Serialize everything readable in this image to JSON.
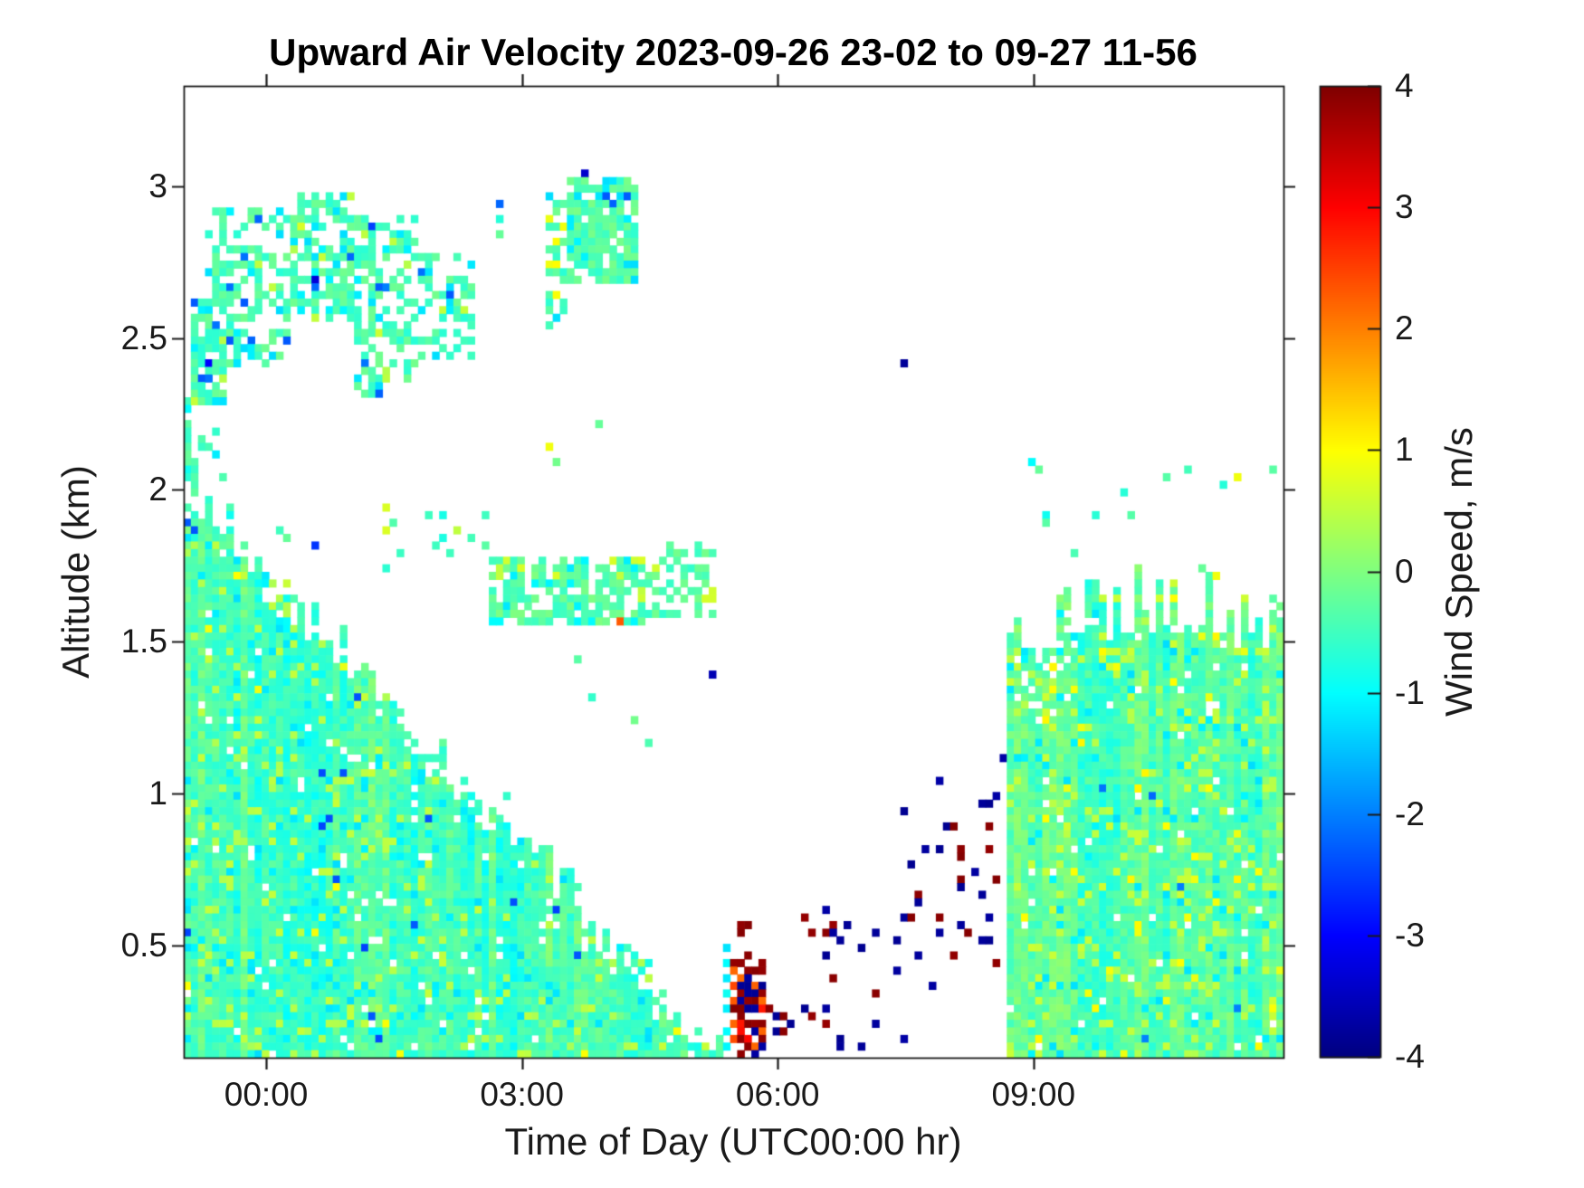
{
  "chart_data": {
    "type": "heatmap",
    "title": "Upward Air Velocity 2023-09-26 23-02 to 09-27 11-56",
    "xlabel": "Time of Day (UTC00:00 hr)",
    "ylabel": "Altitude (km)",
    "colorbar_label": "Wind Speed, m/s",
    "colormap": "jet",
    "value_range": [
      -4,
      4
    ],
    "colorbar_ticks": [
      "4",
      "3",
      "2",
      "1",
      "0",
      "-1",
      "-2",
      "-3",
      "-4"
    ],
    "x_axis": {
      "start_hour": 23.033,
      "end_hour": 35.933,
      "tick_hours": [
        24,
        27,
        30,
        33
      ],
      "tick_labels": [
        "00:00",
        "03:00",
        "06:00",
        "09:00"
      ]
    },
    "y_axis": {
      "min_km": 0.13,
      "max_km": 3.33,
      "ticks": [
        0.5,
        1,
        1.5,
        2,
        2.5,
        3
      ],
      "tick_labels": [
        "0.5",
        "1",
        "1.5",
        "2",
        "2.5",
        "3"
      ]
    },
    "grid": {
      "time_step_hours": 0.08333,
      "alt_step_km": 0.025
    },
    "regions": [
      {
        "name": "boundary-layer-wedge",
        "shape": "wedge",
        "t0": 23.033,
        "t1": 29.37,
        "a0": 0.13,
        "top_start": 2.0,
        "top_slope": -0.295,
        "edge_noise": 0.06,
        "fill": 0.97,
        "base": -0.45,
        "jitter": 0.3,
        "col_streak": 0.3,
        "speckles": [
          {
            "v": -1.15,
            "p": 0.05
          },
          {
            "v": 0.45,
            "p": 0.07
          },
          {
            "v": 0.95,
            "p": 0.008
          },
          {
            "v": -2.4,
            "p": 0.003
          },
          {
            "v": -3.3,
            "p": 0.001
          }
        ]
      },
      {
        "name": "right-block",
        "shape": "block",
        "t0": 32.66,
        "t1": 35.94,
        "a0": 0.13,
        "top_main": 1.5,
        "top_max": 1.76,
        "edge_noise": 0.05,
        "hole_zone": [
          32.66,
          33.7,
          1.25
        ],
        "fill": 0.97,
        "base": -0.35,
        "jitter": 0.3,
        "col_streak": 0.25,
        "speckles": [
          {
            "v": 0.5,
            "p": 0.1
          },
          {
            "v": 0.95,
            "p": 0.015
          },
          {
            "v": -1.15,
            "p": 0.04
          },
          {
            "v": -2.1,
            "p": 0.002
          }
        ]
      },
      {
        "name": "stratocumulus-a",
        "shape": "box",
        "t0": 23.12,
        "t1": 23.55,
        "a0": 2.28,
        "a1": 2.62,
        "fill": 0.7,
        "base": -0.4,
        "jitter": 0.3,
        "speckles": [
          {
            "v": -1.15,
            "p": 0.12
          },
          {
            "v": -2.2,
            "p": 0.02
          },
          {
            "v": 0.5,
            "p": 0.04
          }
        ]
      },
      {
        "name": "stratocumulus-b",
        "shape": "box",
        "t0": 23.3,
        "t1": 24.25,
        "a0": 2.4,
        "a1": 2.92,
        "fill": 0.55,
        "base": -0.4,
        "jitter": 0.3,
        "speckles": [
          {
            "v": -1.15,
            "p": 0.12
          },
          {
            "v": -2.2,
            "p": 0.02
          },
          {
            "v": 0.5,
            "p": 0.04
          }
        ]
      },
      {
        "name": "stratocumulus-c",
        "shape": "box",
        "t0": 24.25,
        "t1": 25.05,
        "a0": 2.55,
        "a1": 2.97,
        "fill": 0.62,
        "base": -0.4,
        "jitter": 0.3,
        "speckles": [
          {
            "v": -1.15,
            "p": 0.12
          },
          {
            "v": -2.2,
            "p": 0.02
          },
          {
            "v": 0.5,
            "p": 0.04
          }
        ]
      },
      {
        "name": "stratocumulus-d",
        "shape": "box",
        "t0": 25.05,
        "t1": 25.75,
        "a0": 2.3,
        "a1": 2.9,
        "fill": 0.55,
        "base": -0.4,
        "jitter": 0.3,
        "speckles": [
          {
            "v": -1.15,
            "p": 0.12
          },
          {
            "v": -2.2,
            "p": 0.02
          },
          {
            "v": 0.5,
            "p": 0.04
          }
        ]
      },
      {
        "name": "stratocumulus-e",
        "shape": "box",
        "t0": 25.75,
        "t1": 26.45,
        "a0": 2.42,
        "a1": 2.78,
        "fill": 0.45,
        "base": -0.4,
        "jitter": 0.3,
        "speckles": [
          {
            "v": -1.15,
            "p": 0.12
          },
          {
            "v": -2.2,
            "p": 0.02
          },
          {
            "v": 0.5,
            "p": 0.04
          }
        ]
      },
      {
        "name": "speck-shelf-left",
        "shape": "box",
        "t0": 23.05,
        "t1": 23.5,
        "a0": 2.02,
        "a1": 2.2,
        "fill": 0.35,
        "base": -0.45,
        "jitter": 0.3,
        "speckles": [
          {
            "v": -1.15,
            "p": 0.15
          }
        ]
      },
      {
        "name": "high-cloud-strip",
        "shape": "box",
        "t0": 27.28,
        "t1": 27.55,
        "a0": 2.5,
        "a1": 2.97,
        "fill": 0.42,
        "base": -0.4,
        "jitter": 0.3,
        "speckles": [
          {
            "v": -1.15,
            "p": 0.15
          },
          {
            "v": 0.9,
            "p": 0.05
          }
        ]
      },
      {
        "name": "high-cloud-blob",
        "shape": "box",
        "t0": 27.55,
        "t1": 28.32,
        "a0": 2.68,
        "a1": 3.03,
        "fill": 0.85,
        "base": -0.35,
        "jitter": 0.3,
        "speckles": [
          {
            "v": -1.15,
            "p": 0.15
          },
          {
            "v": -2.2,
            "p": 0.03
          }
        ]
      },
      {
        "name": "midlevel-lead-specks",
        "shape": "box",
        "t0": 25.1,
        "t1": 26.65,
        "a0": 1.74,
        "a1": 1.96,
        "fill": 0.1,
        "base": -0.55,
        "jitter": 0.3,
        "speckles": [
          {
            "v": 0.6,
            "p": 0.18
          }
        ]
      },
      {
        "name": "midlevel-band",
        "shape": "box",
        "t0": 26.65,
        "t1": 28.45,
        "a0": 1.55,
        "a1": 1.77,
        "fill": 0.72,
        "base": -0.3,
        "jitter": 0.3,
        "speckles": [
          {
            "v": -1.1,
            "p": 0.08
          },
          {
            "v": 0.6,
            "p": 0.06
          },
          {
            "v": -2.2,
            "p": 0.008
          }
        ]
      },
      {
        "name": "midlevel-band-tail",
        "shape": "box",
        "t0": 28.45,
        "t1": 29.25,
        "a0": 1.58,
        "a1": 1.82,
        "fill": 0.45,
        "base": -0.35,
        "jitter": 0.3,
        "speckles": [
          {
            "v": -1.1,
            "p": 0.08
          },
          {
            "v": 0.6,
            "p": 0.06
          }
        ]
      },
      {
        "name": "precip-core",
        "shape": "box",
        "t0": 29.42,
        "t1": 29.85,
        "a0": 0.13,
        "a1": 0.46,
        "fill": 0.6,
        "palette": [
          {
            "v": 3.9,
            "p": 0.52
          },
          {
            "v": -3.8,
            "p": 0.32
          },
          {
            "v": 2.9,
            "p": 0.09
          },
          {
            "v": 2.2,
            "p": 0.07
          }
        ]
      },
      {
        "name": "precip-column",
        "shape": "box",
        "t0": 29.55,
        "t1": 29.72,
        "a0": 0.46,
        "a1": 0.58,
        "fill": 0.45,
        "palette": [
          {
            "v": 3.9,
            "p": 0.5
          },
          {
            "v": -3.8,
            "p": 0.5
          }
        ]
      },
      {
        "name": "precip-straggle",
        "shape": "box",
        "t0": 29.85,
        "t1": 30.28,
        "a0": 0.13,
        "a1": 0.4,
        "fill": 0.16,
        "palette": [
          {
            "v": 3.9,
            "p": 0.55
          },
          {
            "v": -3.8,
            "p": 0.45
          }
        ]
      },
      {
        "name": "sparse-echo-low",
        "shape": "box",
        "t0": 30.3,
        "t1": 31.25,
        "a0": 0.13,
        "a1": 0.62,
        "fill": 0.05,
        "palette": [
          {
            "v": -3.8,
            "p": 0.55
          },
          {
            "v": 3.9,
            "p": 0.45
          }
        ]
      },
      {
        "name": "speck-cluster-midlow",
        "shape": "box",
        "t0": 31.3,
        "t1": 32.6,
        "a0": 0.36,
        "a1": 1.0,
        "fill": 0.085,
        "palette": [
          {
            "v": -3.8,
            "p": 0.72
          },
          {
            "v": 3.9,
            "p": 0.28
          }
        ]
      },
      {
        "name": "above-block-specks",
        "shape": "box",
        "t0": 32.7,
        "t1": 35.9,
        "a0": 1.78,
        "a1": 2.12,
        "fill": 0.012,
        "base": -0.5,
        "jitter": 0.3,
        "speckles": [
          {
            "v": 0.8,
            "p": 0.2
          }
        ]
      }
    ],
    "features": [
      [
        23.06,
        2.3,
        -0.5
      ],
      [
        23.06,
        2.26,
        -1.0
      ],
      [
        23.07,
        2.22,
        -0.3
      ],
      [
        23.06,
        2.17,
        -0.6
      ],
      [
        23.08,
        2.12,
        -0.2
      ],
      [
        23.07,
        2.07,
        -0.9
      ],
      [
        23.35,
        2.42,
        -3.0
      ],
      [
        23.92,
        2.9,
        -2.2
      ],
      [
        24.42,
        2.88,
        0.7
      ],
      [
        24.59,
        2.7,
        -3.3
      ],
      [
        24.98,
        2.76,
        -2.2
      ],
      [
        25.24,
        2.86,
        -2.5
      ],
      [
        25.3,
        2.52,
        0.6
      ],
      [
        25.44,
        2.67,
        -2.0
      ],
      [
        23.55,
        1.95,
        -0.4
      ],
      [
        23.6,
        1.92,
        -0.9
      ],
      [
        24.15,
        1.87,
        -0.5
      ],
      [
        24.2,
        1.84,
        -0.2
      ],
      [
        24.61,
        1.83,
        -2.6
      ],
      [
        26.19,
        2.62,
        -1.2
      ],
      [
        26.2,
        2.57,
        -0.4
      ],
      [
        26.7,
        2.93,
        -2.2
      ],
      [
        26.7,
        2.89,
        -0.7
      ],
      [
        26.72,
        2.85,
        -0.2
      ],
      [
        27.3,
        2.14,
        0.9
      ],
      [
        27.37,
        2.1,
        -0.1
      ],
      [
        27.9,
        2.23,
        -0.2
      ],
      [
        27.62,
        2.96,
        -1.2
      ],
      [
        27.77,
        3.05,
        -3.4
      ],
      [
        28.02,
        2.97,
        -2.3
      ],
      [
        27.35,
        2.8,
        -0.3
      ],
      [
        27.35,
        2.75,
        0.9
      ],
      [
        28.12,
        1.57,
        2.3
      ],
      [
        27.65,
        1.44,
        -0.3
      ],
      [
        27.8,
        1.33,
        -0.6
      ],
      [
        28.3,
        1.25,
        -0.1
      ],
      [
        28.52,
        1.17,
        -0.4
      ],
      [
        29.26,
        1.4,
        -3.6
      ],
      [
        29.37,
        0.5,
        -1.2
      ],
      [
        29.37,
        0.45,
        -1.0
      ],
      [
        29.37,
        0.4,
        -1.15
      ],
      [
        29.37,
        0.34,
        -0.9
      ],
      [
        29.37,
        0.28,
        -1.1
      ],
      [
        29.37,
        0.22,
        -1.0
      ],
      [
        29.37,
        0.17,
        -1.05
      ],
      [
        29.45,
        0.42,
        2.2
      ],
      [
        29.45,
        0.37,
        2.45
      ],
      [
        29.45,
        0.31,
        2.3
      ],
      [
        29.45,
        0.25,
        2.2
      ],
      [
        29.45,
        0.19,
        2.4
      ],
      [
        30.59,
        0.55,
        3.9
      ],
      [
        30.75,
        0.51,
        -3.8
      ],
      [
        30.55,
        0.62,
        -3.7
      ],
      [
        30.62,
        0.58,
        3.8
      ],
      [
        30.75,
        0.16,
        -3.8
      ],
      [
        31.15,
        0.55,
        -3.8
      ],
      [
        31.5,
        0.2,
        -3.7
      ],
      [
        31.47,
        2.42,
        -3.8
      ],
      [
        31.9,
        1.05,
        -3.7
      ],
      [
        32.42,
        0.97,
        -3.8
      ],
      [
        32.5,
        0.9,
        3.9
      ],
      [
        32.56,
        1.0,
        -3.7
      ],
      [
        32.62,
        1.11,
        -3.7
      ],
      [
        33.0,
        2.1,
        -1.0
      ],
      [
        33.05,
        2.07,
        -0.2
      ],
      [
        33.13,
        1.93,
        -0.9
      ],
      [
        33.14,
        1.9,
        -0.3
      ],
      [
        33.8,
        1.01,
        -2.1
      ],
      [
        33.95,
        1.43,
        0.95
      ],
      [
        34.95,
        1.74,
        -0.2
      ],
      [
        35.17,
        1.71,
        0.9
      ],
      [
        35.83,
        1.64,
        -0.3
      ],
      [
        35.88,
        1.61,
        -0.1
      ]
    ],
    "layout_hints": {
      "legend_position": "right-colorbar",
      "grid_lines": "off",
      "tick_direction": "out",
      "box": "on"
    }
  }
}
